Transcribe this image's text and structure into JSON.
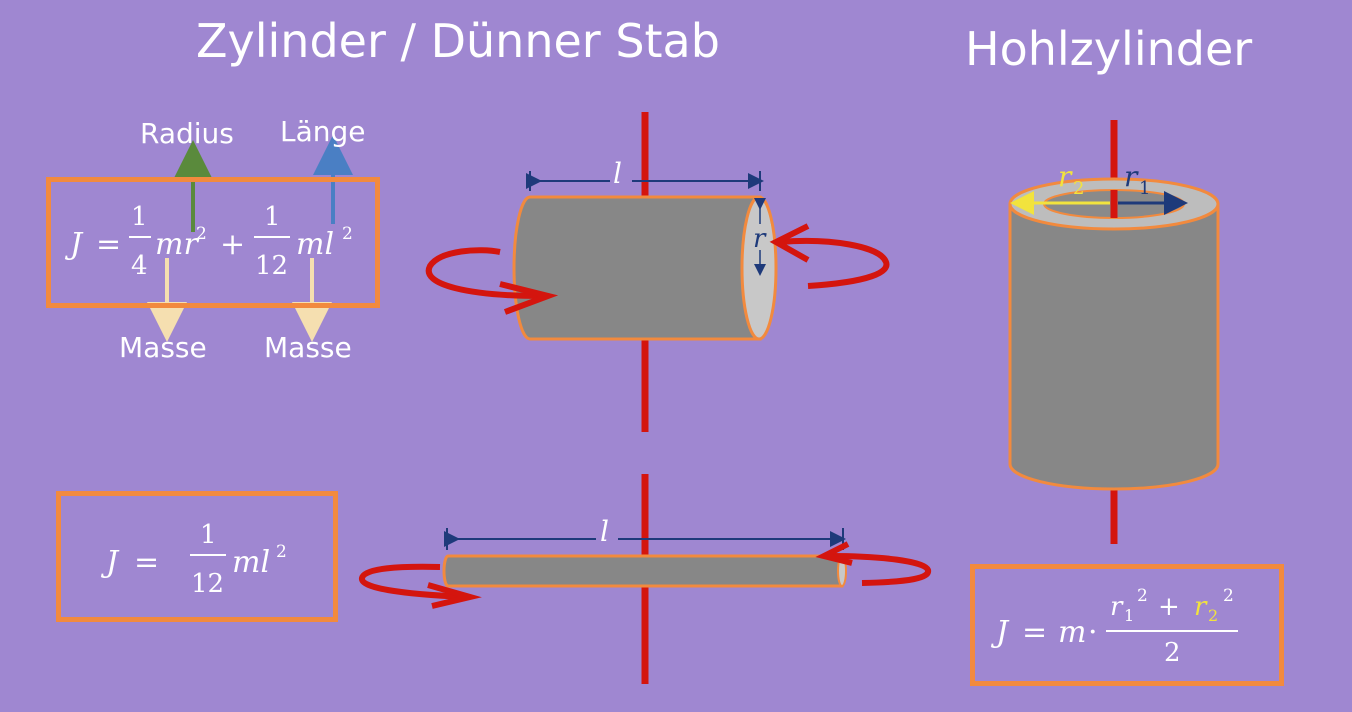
{
  "titles": {
    "left": "Zylinder / Dünner Stab",
    "right": "Hohlzylinder"
  },
  "cylinder_formula": {
    "J": "J",
    "eq": "=",
    "frac1_num": "1",
    "frac1_den": "4",
    "term1": "mr",
    "exp1": "2",
    "plus": "+",
    "frac2_num": "1",
    "frac2_den": "12",
    "term2": "ml",
    "exp2": "2",
    "label_radius": "Radius",
    "label_length": "Länge",
    "label_mass_1": "Masse",
    "label_mass_2": "Masse"
  },
  "rod_formula": {
    "J": "J",
    "eq": "=",
    "frac_num": "1",
    "frac_den": "12",
    "term": "ml",
    "exp": "2"
  },
  "hollow_formula": {
    "J": "J",
    "eq": "=",
    "m": "m",
    "dot": "·",
    "r1": "r",
    "r1_sub": "1",
    "r1_exp": "2",
    "plus": "+",
    "r2": "r",
    "r2_sub": "2",
    "r2_exp": "2",
    "den": "2"
  },
  "diagram_labels": {
    "cyl_length": "l",
    "cyl_radius": "r",
    "rod_length": "l",
    "hollow_r2": "r",
    "hollow_r2_sub": "2",
    "hollow_r1": "r",
    "hollow_r1_sub": "1"
  },
  "colors": {
    "background": "#9f87d1",
    "box_border": "#f28a3e",
    "axis_red": "#d4150e",
    "body_gray": "#888888",
    "radius_arrow_green": "#5a8a3c",
    "length_arrow_blue": "#4a7fc4",
    "mass_arrow_beige": "#f5dfb0",
    "dim_line_navy": "#1e3a7a",
    "r2_yellow": "#f2e33d"
  }
}
